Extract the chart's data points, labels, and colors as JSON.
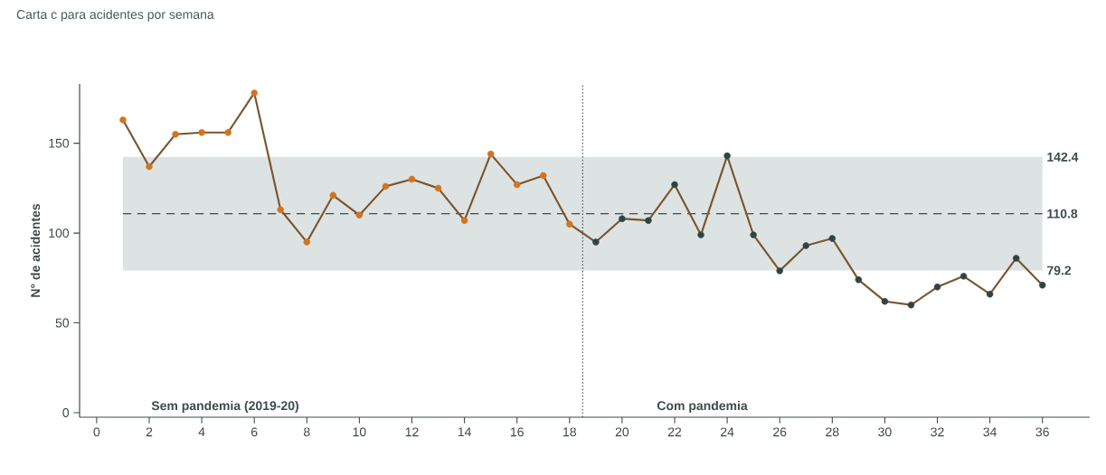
{
  "chart_data": {
    "type": "line",
    "title": "Carta c para acidentes por semana",
    "ylabel": "N° de acidentes",
    "x": [
      1,
      2,
      3,
      4,
      5,
      6,
      7,
      8,
      9,
      10,
      11,
      12,
      13,
      14,
      15,
      16,
      17,
      18,
      19,
      20,
      21,
      22,
      23,
      24,
      25,
      26,
      27,
      28,
      29,
      30,
      31,
      32,
      33,
      34,
      35,
      36
    ],
    "series": [
      {
        "color": "#7a5530",
        "colors": [
          "#d4731f",
          "#d4731f",
          "#d4731f",
          "#d4731f",
          "#d4731f",
          "#d4731f",
          "#d4731f",
          "#d4731f",
          "#d4731f",
          "#d4731f",
          "#d4731f",
          "#d4731f",
          "#d4731f",
          "#d4731f",
          "#d4731f",
          "#d4731f",
          "#d4731f",
          "#d4731f",
          "#2f4444",
          "#2f4444",
          "#2f4444",
          "#2f4444",
          "#2f4444",
          "#2f4444",
          "#2f4444",
          "#2f4444",
          "#2f4444",
          "#2f4444",
          "#2f4444",
          "#2f4444",
          "#2f4444",
          "#2f4444",
          "#2f4444",
          "#2f4444",
          "#2f4444",
          "#2f4444"
        ],
        "values": [
          163,
          137,
          155,
          156,
          156,
          178,
          113,
          95,
          121,
          110,
          126,
          130,
          125,
          107,
          144,
          127,
          132,
          105,
          95,
          108,
          107,
          127,
          99,
          143,
          99,
          79,
          93,
          97,
          74,
          62,
          60,
          70,
          76,
          66,
          86,
          71
        ]
      }
    ],
    "marker": "circle",
    "line_style": "solid",
    "xlim": [
      -0.65,
      37.8
    ],
    "ylim": [
      -2.5,
      183
    ],
    "xticks": [
      0,
      2,
      4,
      6,
      8,
      10,
      12,
      14,
      16,
      18,
      20,
      22,
      24,
      26,
      28,
      30,
      32,
      34,
      36
    ],
    "yticks": [
      0,
      50,
      100,
      150
    ],
    "bands": [
      {
        "axis": "y",
        "from": 79.2,
        "to": 142.4,
        "color": "#dde3e3"
      }
    ],
    "ref_lines": [
      {
        "axis": "y",
        "value": 110.8,
        "label": "110.8",
        "color": "#3d4b4b",
        "line_style": "dashed"
      },
      {
        "axis": "x",
        "value": 18.5,
        "color": "#3d4b4b",
        "line_style": "dotted"
      }
    ],
    "annotations": [
      {
        "text": "142.4",
        "x": 36,
        "y": 142.4
      },
      {
        "text": "79.2",
        "x": 36,
        "y": 79.2
      },
      "Sem pandemia (2019-20)",
      "Com pandemia"
    ],
    "grid": false
  }
}
